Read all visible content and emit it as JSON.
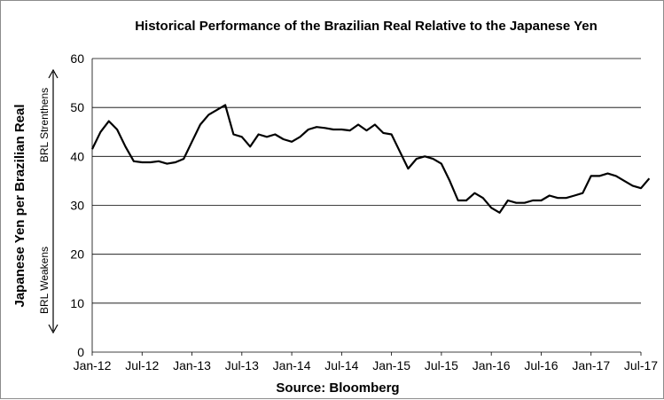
{
  "chart_data": {
    "type": "line",
    "title": "Historical Performance of the Brazilian Real Relative to the Japanese Yen",
    "ylabel": "Japanese Yen per Brazilian Real",
    "xlabel": "Source: Bloomberg",
    "ylim": [
      0,
      60
    ],
    "yticks": [
      0,
      10,
      20,
      30,
      40,
      50,
      60
    ],
    "xticks": [
      "Jan-12",
      "Jul-12",
      "Jan-13",
      "Jul-13",
      "Jan-14",
      "Jul-14",
      "Jan-15",
      "Jul-15",
      "Jan-16",
      "Jul-16",
      "Jan-17",
      "Jul-17"
    ],
    "grid": "horizontal",
    "legend": "none",
    "annotations": {
      "up": "BRL Strenthens",
      "down": "BRL Weakens"
    },
    "colors": {
      "line": "#000000",
      "grid": "#000000"
    },
    "series": [
      {
        "x": [
          "2012-01",
          "2012-02",
          "2012-03",
          "2012-04",
          "2012-05",
          "2012-06",
          "2012-07",
          "2012-08",
          "2012-09",
          "2012-10",
          "2012-11",
          "2012-12",
          "2013-01",
          "2013-02",
          "2013-03",
          "2013-04",
          "2013-05",
          "2013-06",
          "2013-07",
          "2013-08",
          "2013-09",
          "2013-10",
          "2013-11",
          "2013-12",
          "2014-01",
          "2014-02",
          "2014-03",
          "2014-04",
          "2014-05",
          "2014-06",
          "2014-07",
          "2014-08",
          "2014-09",
          "2014-10",
          "2014-11",
          "2014-12",
          "2015-01",
          "2015-02",
          "2015-03",
          "2015-04",
          "2015-05",
          "2015-06",
          "2015-07",
          "2015-08",
          "2015-09",
          "2015-10",
          "2015-11",
          "2015-12",
          "2016-01",
          "2016-02",
          "2016-03",
          "2016-04",
          "2016-05",
          "2016-06",
          "2016-07",
          "2016-08",
          "2016-09",
          "2016-10",
          "2016-11",
          "2016-12",
          "2017-01",
          "2017-02",
          "2017-03",
          "2017-04",
          "2017-05",
          "2017-06",
          "2017-07",
          "2017-08"
        ],
        "values": [
          41.5,
          45,
          47.2,
          45.5,
          42,
          39,
          38.8,
          38.8,
          39,
          38.5,
          38.8,
          39.5,
          43,
          46.5,
          48.5,
          49.5,
          50.5,
          44.5,
          44,
          42,
          44.5,
          44,
          44.5,
          43.5,
          43,
          44,
          45.5,
          46,
          45.8,
          45.5,
          45.5,
          45.3,
          46.5,
          45.3,
          46.5,
          44.8,
          44.5,
          41,
          37.5,
          39.5,
          40,
          39.5,
          38.5,
          35,
          31,
          31,
          32.5,
          31.5,
          29.5,
          28.5,
          31,
          30.5,
          30.5,
          31,
          31,
          32,
          31.5,
          31.5,
          32,
          32.5,
          36,
          36,
          36.5,
          36,
          35,
          34,
          33.5,
          35.5
        ]
      }
    ]
  }
}
